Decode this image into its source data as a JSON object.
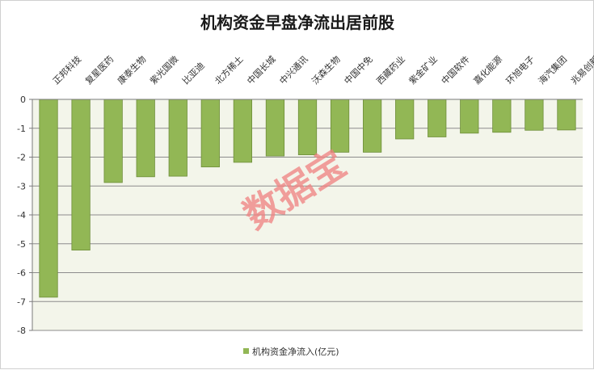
{
  "chart_data": {
    "type": "bar",
    "title": "机构资金早盘净流出居前股",
    "categories": [
      "正邦科技",
      "复星医药",
      "康泰生物",
      "紫光国微",
      "比亚迪",
      "北方稀土",
      "中国长城",
      "中兴通讯",
      "沃森生物",
      "中国中免",
      "西藏药业",
      "紫金矿业",
      "中国软件",
      "嘉化能源",
      "环旭电子",
      "海汽集团",
      "兆易创新"
    ],
    "series": [
      {
        "name": "机构资金净流入(亿元)",
        "values": [
          -6.85,
          -5.22,
          -2.88,
          -2.68,
          -2.66,
          -2.34,
          -2.18,
          -1.96,
          -1.92,
          -1.83,
          -1.83,
          -1.37,
          -1.3,
          -1.17,
          -1.14,
          -1.07,
          -1.06
        ]
      }
    ],
    "ylim": [
      -8,
      0
    ],
    "yticks": [
      0,
      -1,
      -2,
      -3,
      -4,
      -5,
      -6,
      -7,
      -8
    ],
    "grid": true,
    "legend": "bottom-center",
    "bar_color": "#92b755",
    "bar_edge_color": "#6e8e3a",
    "plot_bg_color": "#f3f5ea"
  },
  "watermark": "数据宝"
}
